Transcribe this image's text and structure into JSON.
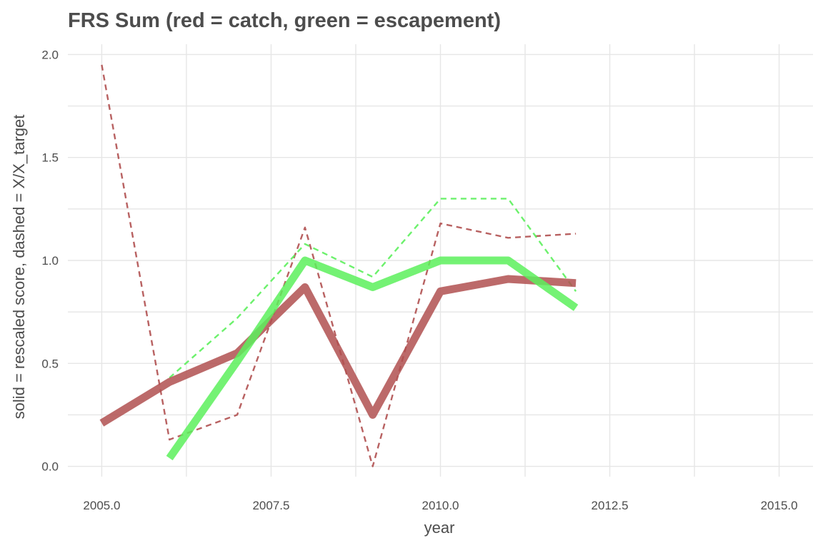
{
  "chart_data": {
    "type": "line",
    "title": "FRS Sum (red = catch, green = escapement)",
    "xlabel": "year",
    "ylabel": "solid = rescaled score, dashed = X/X_target",
    "xlim": [
      2004.5,
      2015.5
    ],
    "ylim": [
      -0.05,
      2.05
    ],
    "x_ticks": [
      2005.0,
      2007.5,
      2010.0,
      2012.5,
      2015.0
    ],
    "x_tick_labels": [
      "2005.0",
      "2007.5",
      "2010.0",
      "2012.5",
      "2015.0"
    ],
    "y_ticks": [
      0.0,
      0.5,
      1.0,
      1.5,
      2.0
    ],
    "y_tick_labels": [
      "0.0",
      "0.5",
      "1.0",
      "1.5",
      "2.0"
    ],
    "grid": true,
    "legend": "none",
    "series": [
      {
        "key": "catch-dashed",
        "style": "dashed",
        "color": "#b05050",
        "x": [
          2005,
          2006,
          2007,
          2008,
          2009,
          2010,
          2011,
          2012
        ],
        "y": [
          1.95,
          0.13,
          0.25,
          1.16,
          0.0,
          1.18,
          1.11,
          1.13
        ]
      },
      {
        "key": "escapement-dashed",
        "style": "dashed",
        "color": "#5cf05c",
        "x": [
          2006,
          2007,
          2008,
          2009,
          2010,
          2011,
          2012
        ],
        "y": [
          0.43,
          0.72,
          1.08,
          0.92,
          1.3,
          1.3,
          0.85
        ]
      },
      {
        "key": "catch-solid",
        "style": "solid",
        "color": "#b05050",
        "x": [
          2005,
          2006,
          2007,
          2008,
          2009,
          2010,
          2011,
          2012
        ],
        "y": [
          0.21,
          0.41,
          0.55,
          0.87,
          0.25,
          0.85,
          0.91,
          0.89
        ]
      },
      {
        "key": "escapement-solid",
        "style": "solid",
        "color": "#5cf05c",
        "x": [
          2006,
          2007,
          2008,
          2009,
          2010,
          2011,
          2012
        ],
        "y": [
          0.04,
          0.51,
          1.0,
          0.87,
          1.0,
          1.0,
          0.77
        ]
      }
    ]
  }
}
